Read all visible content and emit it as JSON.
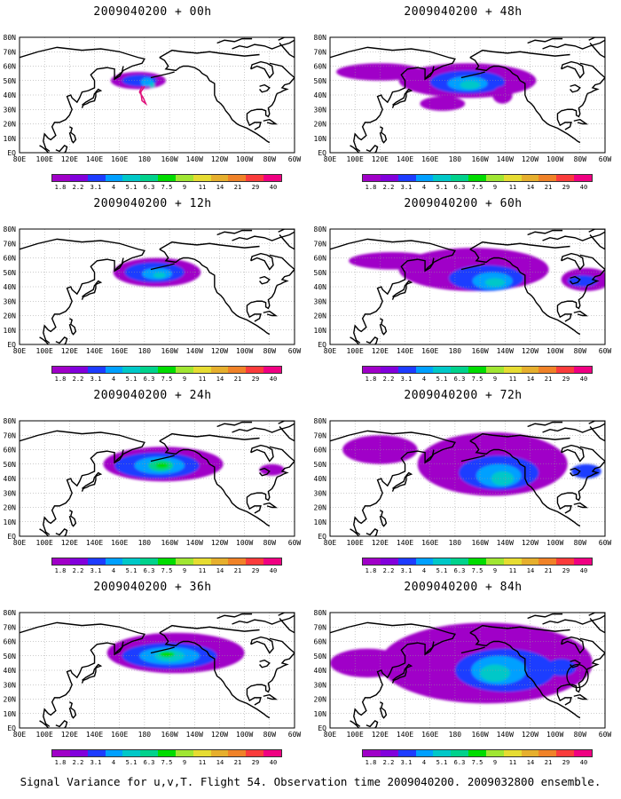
{
  "panels": [
    {
      "title": "2009040200 + 00h",
      "col": 0,
      "row": 0
    },
    {
      "title": "2009040200 + 48h",
      "col": 1,
      "row": 0
    },
    {
      "title": "2009040200 + 12h",
      "col": 0,
      "row": 1
    },
    {
      "title": "2009040200 + 60h",
      "col": 1,
      "row": 1
    },
    {
      "title": "2009040200 + 24h",
      "col": 0,
      "row": 2
    },
    {
      "title": "2009040200 + 72h",
      "col": 1,
      "row": 2
    },
    {
      "title": "2009040200 + 36h",
      "col": 0,
      "row": 3
    },
    {
      "title": "2009040200 + 84h",
      "col": 1,
      "row": 3
    }
  ],
  "lat_labels": [
    "80N",
    "70N",
    "60N",
    "50N",
    "40N",
    "30N",
    "20N",
    "10N",
    "EQ"
  ],
  "lon_labels": [
    "80E",
    "100E",
    "120E",
    "140E",
    "160E",
    "180",
    "160W",
    "140W",
    "120W",
    "100W",
    "80W",
    "60W"
  ],
  "colorbar": {
    "labels": [
      "1.8",
      "2.2",
      "3.1",
      "4",
      "5.1",
      "6.3",
      "7.5",
      "9",
      "11",
      "14",
      "21",
      "29",
      "40"
    ],
    "colors": [
      "#a000c8",
      "#8200dc",
      "#1e3cff",
      "#00a0ff",
      "#00c8c8",
      "#00d28c",
      "#00dc00",
      "#a0e632",
      "#e6dc32",
      "#e6af2d",
      "#f08228",
      "#fa3c3c",
      "#f00082"
    ]
  },
  "caption": "Signal Variance for u,v,T. Flight 54. Observation time 2009040200. 2009032800 ensemble."
}
